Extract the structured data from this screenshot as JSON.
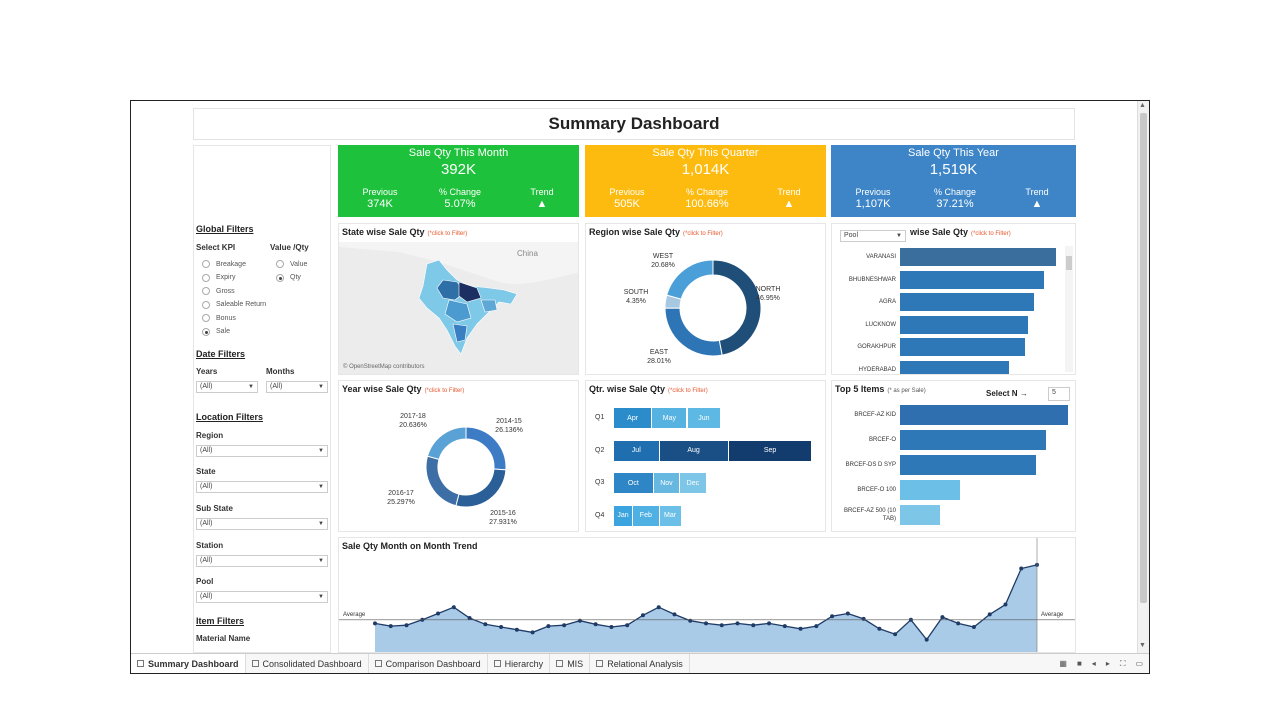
{
  "dashboard_title": "Summary Dashboard",
  "colors": {
    "green": "#1ec13b",
    "yellow": "#fdbb0f",
    "blue": "#3d85c6",
    "dark": "#1f4e79",
    "mid": "#2e75b6",
    "light": "#6fc3e3"
  },
  "kpis": [
    {
      "title": "Sale Qty This Month",
      "value": "392K",
      "prev_label": "Previous",
      "prev": "374K",
      "change_label": "% Change",
      "change": "5.07%",
      "trend_label": "Trend",
      "trend": "▲"
    },
    {
      "title": "Sale Qty This Quarter",
      "value": "1,014K",
      "prev_label": "Previous",
      "prev": "505K",
      "change_label": "% Change",
      "change": "100.66%",
      "trend_label": "Trend",
      "trend": "▲"
    },
    {
      "title": "Sale Qty This Year",
      "value": "1,519K",
      "prev_label": "Previous",
      "prev": "1,107K",
      "change_label": "% Change",
      "change": "37.21%",
      "trend_label": "Trend",
      "trend": "▲"
    }
  ],
  "filters": {
    "global_title": "Global Filters",
    "kpi_label": "Select KPI",
    "kpi_options": [
      "Breakage",
      "Expiry",
      "Gross",
      "Saleable Return",
      "Bonus",
      "Sale"
    ],
    "kpi_selected": "Sale",
    "valqty_label": "Value /Qty",
    "valqty_options": [
      "Value",
      "Qty"
    ],
    "valqty_selected": "Qty",
    "date_title": "Date Filters",
    "years_label": "Years",
    "years_value": "(All)",
    "months_label": "Months",
    "months_value": "(All)",
    "location_title": "Location Filters",
    "region_label": "Region",
    "region_value": "(All)",
    "state_label": "State",
    "state_value": "(All)",
    "substate_label": "Sub State",
    "substate_value": "(All)",
    "station_label": "Station",
    "station_value": "(All)",
    "pool_label": "Pool",
    "pool_value": "(All)",
    "item_title": "Item Filters",
    "material_label": "Material Name"
  },
  "click_hint": "(*click to Filter)",
  "state_panel": {
    "title": "State wise Sale Qty",
    "map_label": "China",
    "attribution": "© OpenStreetMap contributors"
  },
  "region_panel": {
    "title": "Region wise Sale Qty",
    "chart_data": {
      "type": "pie",
      "donut": true,
      "slices": [
        {
          "label": "NORTH",
          "value": 46.95,
          "text": "46.95%"
        },
        {
          "label": "EAST",
          "value": 28.01,
          "text": "28.01%"
        },
        {
          "label": "SOUTH",
          "value": 4.35,
          "text": "4.35%"
        },
        {
          "label": "WEST",
          "value": 20.68,
          "text": "20.68%"
        }
      ]
    }
  },
  "city_panel": {
    "title": "wise Sale Qty",
    "dropdown_value": "Pool",
    "chart_data": {
      "type": "bar",
      "orientation": "horizontal",
      "categories": [
        "VARANASI",
        "BHUBNESHWAR",
        "AGRA",
        "LUCKNOW",
        "GORAKHPUR",
        "HYDERABAD"
      ],
      "values": [
        100,
        92,
        86,
        82,
        80,
        70
      ]
    }
  },
  "year_panel": {
    "title": "Year wise Sale Qty",
    "chart_data": {
      "type": "pie",
      "donut": true,
      "slices": [
        {
          "label": "2014-15",
          "value": 26.136,
          "text": "26.136%"
        },
        {
          "label": "2015-16",
          "value": 27.931,
          "text": "27.931%"
        },
        {
          "label": "2016-17",
          "value": 25.297,
          "text": "25.297%"
        },
        {
          "label": "2017-18",
          "value": 20.636,
          "text": "20.636%"
        }
      ]
    }
  },
  "qtr_panel": {
    "title": "Qtr. wise Sale Qty",
    "chart_data": {
      "type": "bar",
      "stacked": true,
      "orientation": "horizontal",
      "rows": [
        {
          "label": "Q1",
          "segments": [
            {
              "name": "Apr",
              "value": 26
            },
            {
              "name": "May",
              "value": 24
            },
            {
              "name": "Jun",
              "value": 23
            }
          ]
        },
        {
          "label": "Q2",
          "segments": [
            {
              "name": "Jul",
              "value": 31
            },
            {
              "name": "Aug",
              "value": 47
            },
            {
              "name": "Sep",
              "value": 57
            }
          ]
        },
        {
          "label": "Q3",
          "segments": [
            {
              "name": "Oct",
              "value": 27
            },
            {
              "name": "Nov",
              "value": 18
            },
            {
              "name": "Dec",
              "value": 18
            }
          ]
        },
        {
          "label": "Q4",
          "segments": [
            {
              "name": "Jan",
              "value": 13
            },
            {
              "name": "Feb",
              "value": 18
            },
            {
              "name": "Mar",
              "value": 15
            }
          ]
        }
      ]
    }
  },
  "top5_panel": {
    "title": "Top 5 Items",
    "subtitle": "(* as per Sale)",
    "select_label": "Select N",
    "select_arrow": "→",
    "select_value": "5",
    "chart_data": {
      "type": "bar",
      "orientation": "horizontal",
      "categories": [
        "BRCEF-AZ KID",
        "BRCEF-O",
        "BRCEF-DS D SYP",
        "BRCEF-O 100",
        "BRCEF-AZ 500 (10 TAB)"
      ],
      "values": [
        100,
        87,
        81,
        36,
        24
      ]
    }
  },
  "trend_panel": {
    "title": "Sale Qty Month on Month Trend",
    "average_label": "Average",
    "chart_data": {
      "type": "area",
      "values": [
        34,
        31,
        32,
        38,
        45,
        52,
        40,
        33,
        30,
        27,
        24,
        31,
        32,
        37,
        33,
        30,
        32,
        43,
        52,
        44,
        37,
        34,
        32,
        34,
        32,
        34,
        31,
        28,
        31,
        42,
        45,
        39,
        28,
        22,
        38,
        16,
        41,
        34,
        30,
        44,
        55,
        95,
        99
      ],
      "average": 38,
      "ylim": [
        0,
        100
      ]
    }
  },
  "tabs": [
    "Summary Dashboard",
    "Consolidated Dashboard",
    "Comparison Dashboard",
    "Hierarchy",
    "MIS",
    "Relational Analysis"
  ],
  "active_tab": "Summary Dashboard"
}
